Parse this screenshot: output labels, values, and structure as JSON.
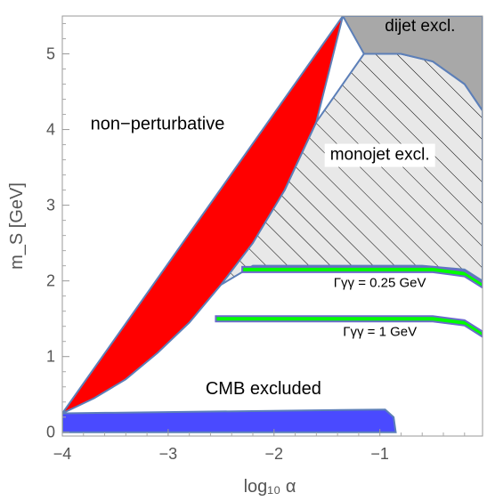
{
  "chart_data": {
    "type": "area",
    "xlabel": "log₁₀ α",
    "ylabel": "m_S [GeV]",
    "xlim": [
      -4.0,
      -0.03
    ],
    "ylim": [
      -0.05,
      5.5
    ],
    "x_ticks": [
      -4,
      -3,
      -2,
      -1
    ],
    "y_ticks": [
      0,
      1,
      2,
      3,
      4,
      5
    ],
    "x_tick_labels": [
      "−4",
      "−3",
      "−2",
      "−1"
    ],
    "y_tick_labels": [
      "0",
      "1",
      "2",
      "3",
      "4",
      "5"
    ],
    "grid": false,
    "regions": [
      {
        "label": "non−perturbative",
        "color": "#ff0000",
        "boundary": [
          [
            -4.0,
            0.25
          ],
          [
            -3.7,
            0.45
          ],
          [
            -3.4,
            0.7
          ],
          [
            -3.1,
            1.05
          ],
          [
            -2.8,
            1.45
          ],
          [
            -2.5,
            1.95
          ],
          [
            -2.2,
            2.5
          ],
          [
            -1.9,
            3.2
          ],
          [
            -1.6,
            4.1
          ],
          [
            -1.35,
            5.5
          ]
        ]
      },
      {
        "label": "dijet excl.",
        "color": "#a8a8a8",
        "boundary": [
          [
            -1.35,
            5.5
          ],
          [
            -0.03,
            5.5
          ],
          [
            -0.03,
            4.25
          ],
          [
            -0.2,
            4.6
          ],
          [
            -0.5,
            4.9
          ],
          [
            -0.8,
            5.0
          ],
          [
            -1.15,
            5.0
          ],
          [
            -1.35,
            5.5
          ]
        ]
      },
      {
        "label": "monojet excl.",
        "pattern": "hatched",
        "boundary": [
          [
            -1.15,
            5.0
          ],
          [
            -0.8,
            5.0
          ],
          [
            -0.5,
            4.9
          ],
          [
            -0.2,
            4.6
          ],
          [
            -0.03,
            4.25
          ],
          [
            -0.03,
            2.0
          ],
          [
            -0.2,
            2.15
          ],
          [
            -0.6,
            2.2
          ],
          [
            -2.2,
            2.2
          ],
          [
            -2.5,
            1.95
          ],
          [
            -1.9,
            3.2
          ],
          [
            -1.6,
            4.1
          ],
          [
            -1.15,
            5.0
          ]
        ]
      },
      {
        "label": "Γγγ = 0.25 GeV",
        "color": "#00ff00",
        "band": {
          "y": 2.15,
          "width": 0.07,
          "x_start": -2.3
        }
      },
      {
        "label": "Γγγ = 1 GeV",
        "color": "#00ff00",
        "band": {
          "y": 1.5,
          "width": 0.07,
          "x_start": -2.55
        }
      },
      {
        "label": "CMB excluded",
        "color": "#4a4aff",
        "boundary": [
          [
            -4.0,
            0.0
          ],
          [
            -4.0,
            0.25
          ],
          [
            -0.95,
            0.3
          ],
          [
            -0.87,
            0.2
          ],
          [
            -0.85,
            0.0
          ]
        ]
      }
    ],
    "annotations": [
      {
        "text": "non−perturbative",
        "x": -3.1,
        "y": 4.0
      },
      {
        "text": "dijet excl.",
        "x": -0.62,
        "y": 5.3
      },
      {
        "text": "monojet excl.",
        "x": -1.0,
        "y": 3.6
      },
      {
        "text": "CMB excluded",
        "x": -2.1,
        "y": 0.5
      },
      {
        "text": "Γγγ = 0.25 GeV",
        "x": -1.0,
        "y": 1.92
      },
      {
        "text": "Γγγ = 1 GeV",
        "x": -1.0,
        "y": 1.27
      }
    ],
    "colors": {
      "boundary": "#5c7fb8",
      "hatch": "#000000",
      "band_edge": "#6a6acc"
    }
  }
}
